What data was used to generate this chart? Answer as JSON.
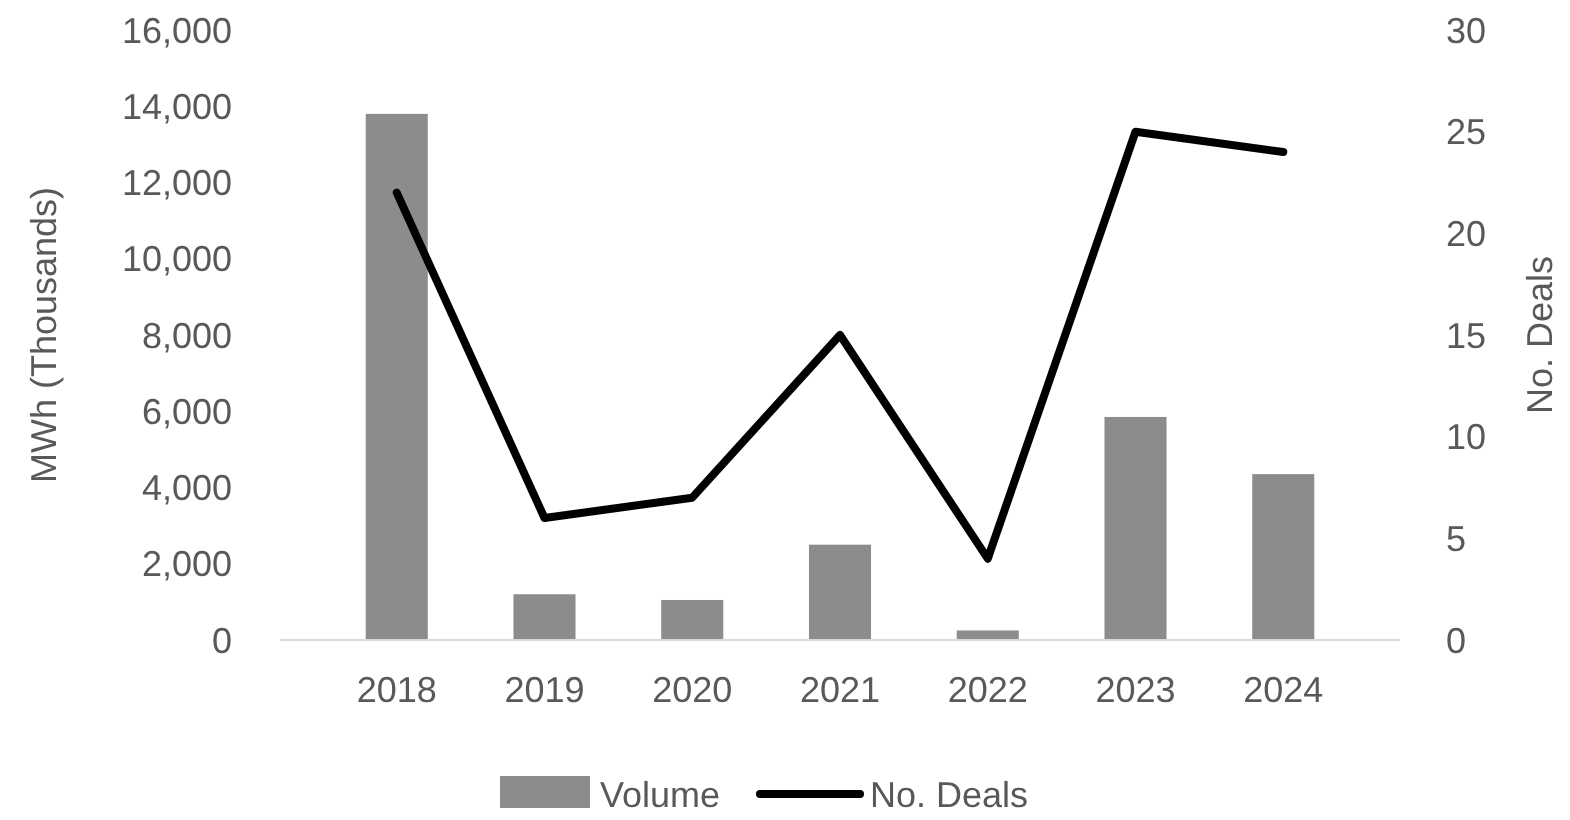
{
  "chart_data": {
    "type": "bar",
    "categories": [
      "2018",
      "2019",
      "2020",
      "2021",
      "2022",
      "2023",
      "2024"
    ],
    "ylabel": "MWh (Thousands)",
    "y2label": "No. Deals",
    "ylim": [
      0,
      16000
    ],
    "yticks": [
      {
        "value": 0,
        "label": "0"
      },
      {
        "value": 2000,
        "label": "2,000"
      },
      {
        "value": 4000,
        "label": "4,000"
      },
      {
        "value": 6000,
        "label": "6,000"
      },
      {
        "value": 8000,
        "label": "8,000"
      },
      {
        "value": 10000,
        "label": "10,000"
      },
      {
        "value": 12000,
        "label": "12,000"
      },
      {
        "value": 14000,
        "label": "14,000"
      },
      {
        "value": 16000,
        "label": "16,000"
      }
    ],
    "y2lim": [
      0,
      30
    ],
    "y2ticks": [
      0,
      5,
      10,
      15,
      20,
      25,
      30
    ],
    "legend": "bottom",
    "series": [
      {
        "name": "Volume",
        "color": "#8c8c8c",
        "values": [
          13800,
          1200,
          1050,
          2500,
          250,
          5850,
          4350
        ]
      },
      {
        "name": "No. Deals",
        "type": "line",
        "axis": "y2",
        "color": "#000000",
        "values": [
          22,
          6,
          7,
          15,
          4,
          25,
          24
        ]
      }
    ]
  }
}
